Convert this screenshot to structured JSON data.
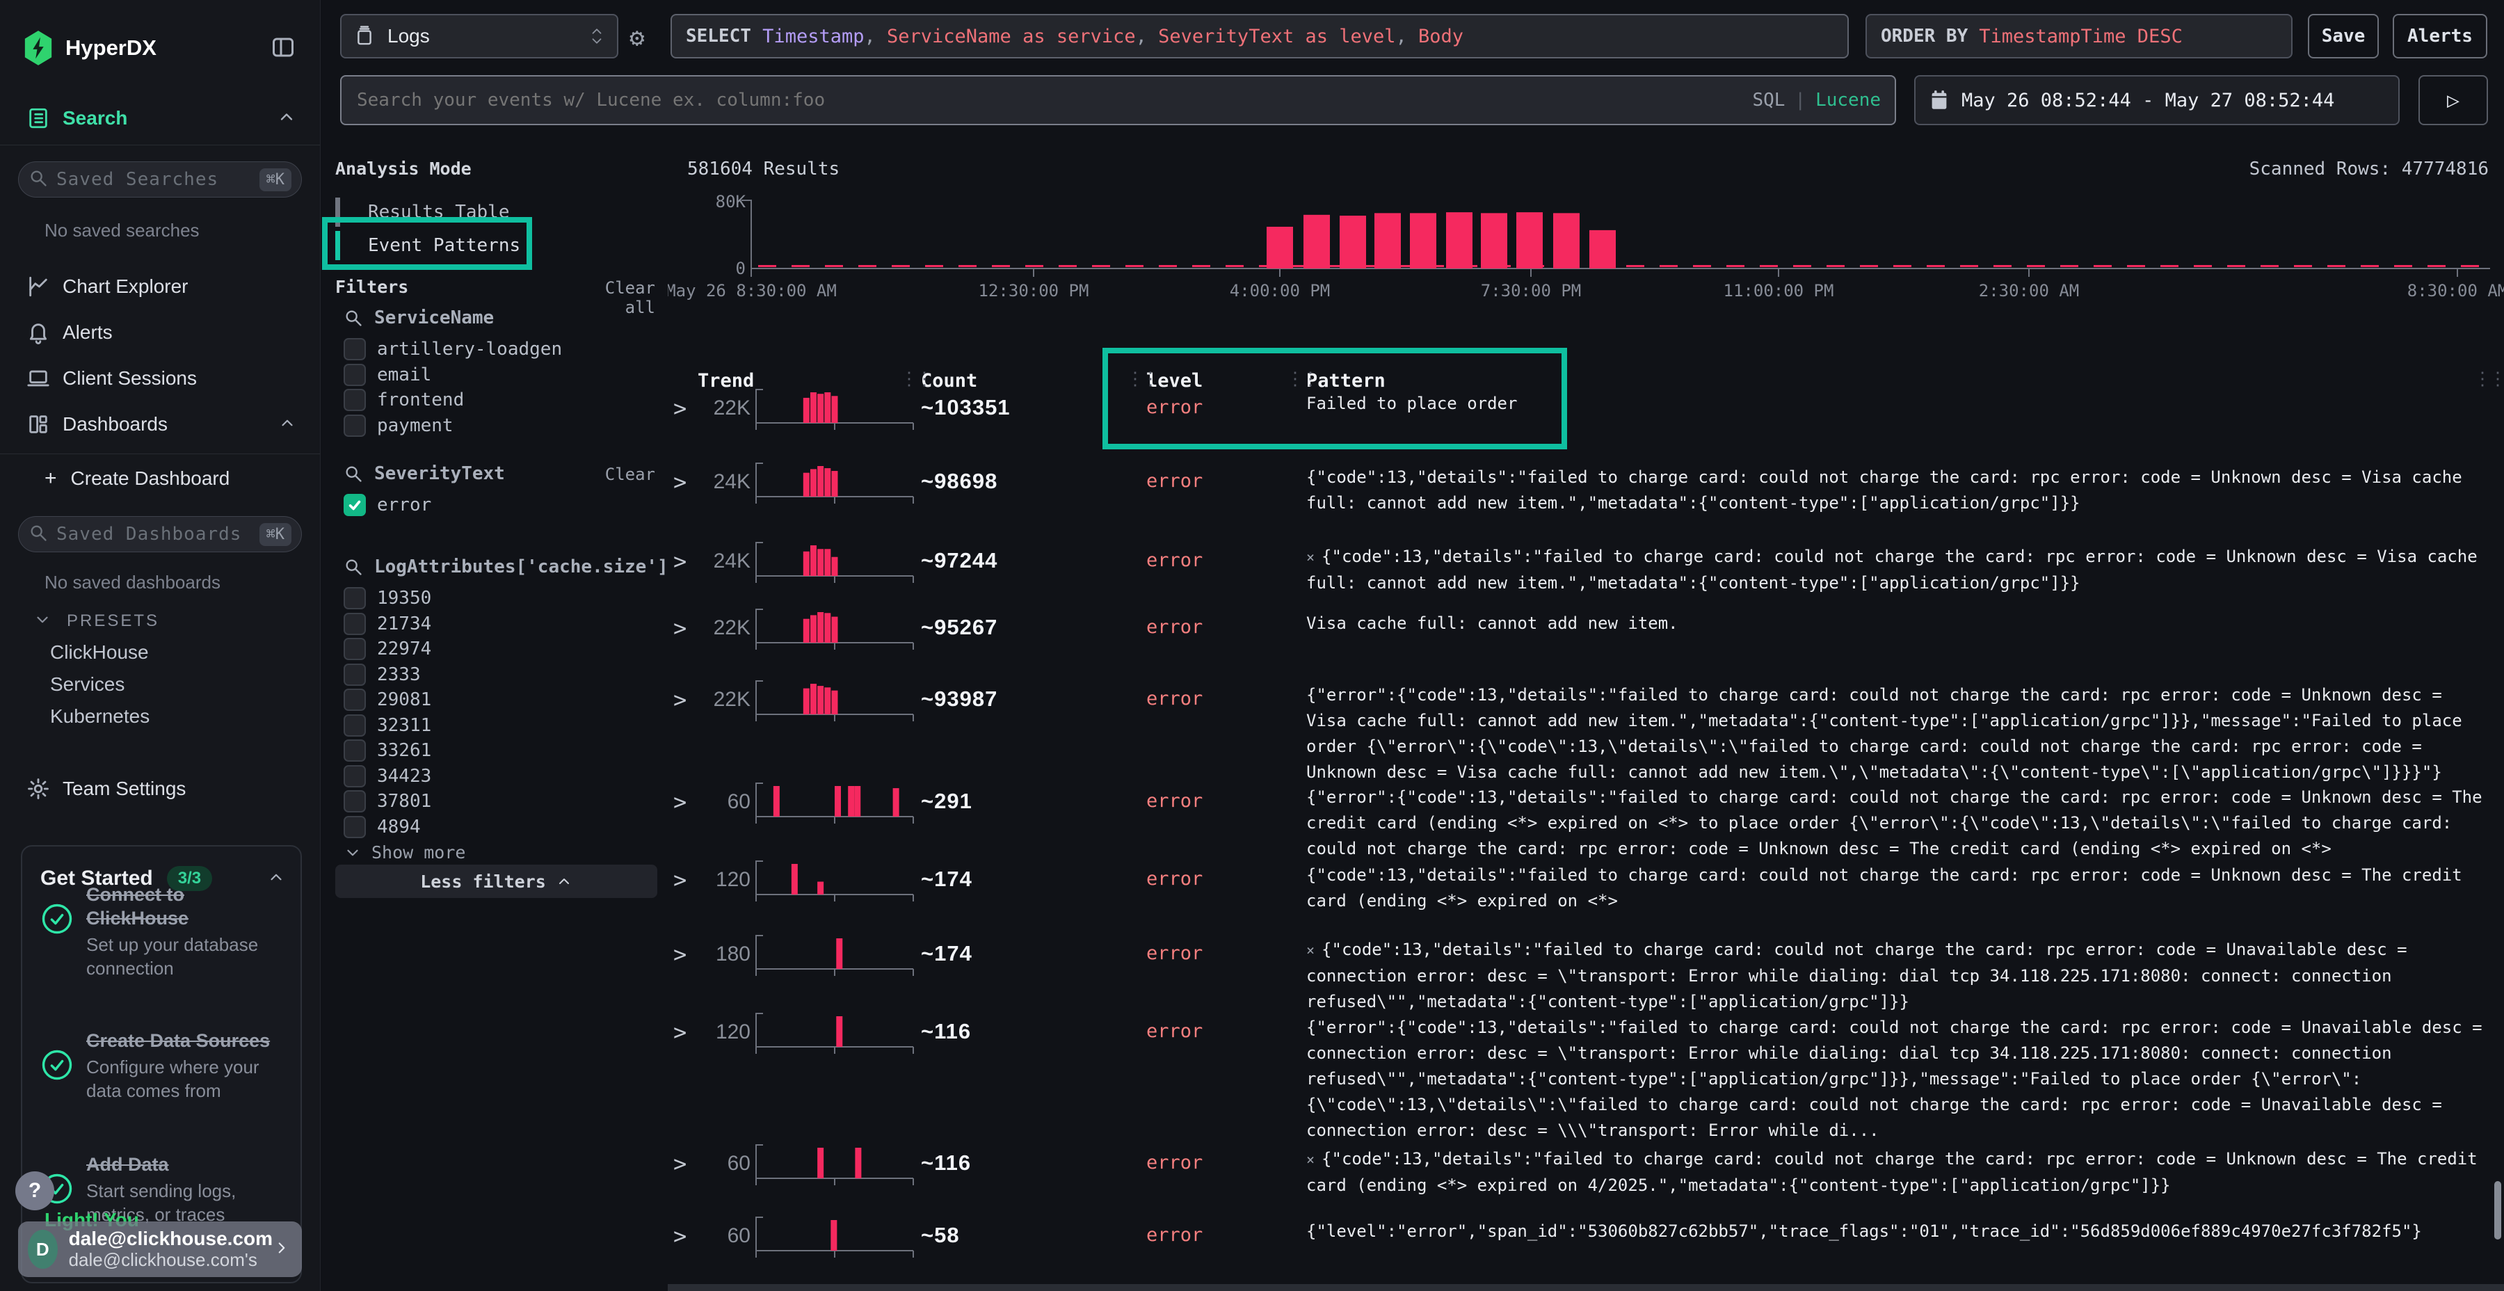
{
  "brand": {
    "name": "HyperDX",
    "logo_color": "#2fd36e"
  },
  "sidebar": {
    "search_label": "Search",
    "saved_searches_placeholder": "Saved Searches",
    "shortcut": "⌘K",
    "empty_searches": "No saved searches",
    "nav": [
      {
        "label": "Chart Explorer",
        "icon": "chart-icon"
      },
      {
        "label": "Alerts",
        "icon": "bell-icon"
      },
      {
        "label": "Client Sessions",
        "icon": "laptop-icon"
      },
      {
        "label": "Dashboards",
        "icon": "grid-icon",
        "chevron": "up"
      }
    ],
    "create_dashboard": "Create Dashboard",
    "saved_dashboards_placeholder": "Saved Dashboards",
    "empty_dashboards": "No saved dashboards",
    "presets_label": "PRESETS",
    "presets": [
      "ClickHouse",
      "Services",
      "Kubernetes"
    ],
    "team_settings": "Team Settings",
    "get_started": {
      "title": "Get Started",
      "badge": "3/3",
      "steps": [
        {
          "title": "Connect to ClickHouse",
          "desc": "Set up your database connection"
        },
        {
          "title": "Create Data Sources",
          "desc": "Configure where your data comes from"
        },
        {
          "title": "Add Data",
          "desc": "Start sending logs, metrics, or traces"
        }
      ]
    },
    "help_label": "?",
    "promo_partial": "Light! You",
    "user": {
      "initial": "D",
      "email": "dale@clickhouse.com",
      "org": "dale@clickhouse.com's"
    }
  },
  "topbar": {
    "source_select": {
      "label": "Logs"
    },
    "select_query": {
      "keyword": "SELECT",
      "segments": [
        {
          "t": " Timestamp",
          "c": "purple"
        },
        {
          "t": ",",
          "c": "muted"
        },
        {
          "t": " ServiceName as service",
          "c": "red"
        },
        {
          "t": ",",
          "c": "muted"
        },
        {
          "t": " SeverityText as level",
          "c": "red"
        },
        {
          "t": ",",
          "c": "muted"
        },
        {
          "t": " Body",
          "c": "red"
        }
      ]
    },
    "order_by": {
      "keyword": "ORDER BY",
      "value": "TimestampTime DESC"
    },
    "save_label": "Save",
    "alerts_label": "Alerts",
    "search": {
      "placeholder": "Search your events w/ Lucene ex. column:foo",
      "mode_sql": "SQL",
      "mode_lucene": "Lucene",
      "active_mode": "Lucene"
    },
    "date_range": "May 26 08:52:44 - May 27 08:52:44"
  },
  "filters_panel": {
    "analysis_mode_label": "Analysis Mode",
    "modes": [
      {
        "label": "Results Table",
        "active": false
      },
      {
        "label": "Event Patterns",
        "active": true
      }
    ],
    "filters_label": "Filters",
    "clear_all": "Clear all",
    "groups": [
      {
        "name": "ServiceName",
        "action": "",
        "items": [
          {
            "label": "artillery-loadgen",
            "checked": false
          },
          {
            "label": "email",
            "checked": false
          },
          {
            "label": "frontend",
            "checked": false
          },
          {
            "label": "payment",
            "checked": false
          }
        ]
      },
      {
        "name": "SeverityText",
        "action": "Clear",
        "items": [
          {
            "label": "error",
            "checked": true
          }
        ]
      },
      {
        "name": "LogAttributes['cache.size']",
        "action": "",
        "items": [
          {
            "label": "19350",
            "checked": false
          },
          {
            "label": "21734",
            "checked": false
          },
          {
            "label": "22974",
            "checked": false
          },
          {
            "label": "2333",
            "checked": false
          },
          {
            "label": "29081",
            "checked": false
          },
          {
            "label": "32311",
            "checked": false
          },
          {
            "label": "33261",
            "checked": false
          },
          {
            "label": "34423",
            "checked": false
          },
          {
            "label": "37801",
            "checked": false
          },
          {
            "label": "4894",
            "checked": false
          }
        ],
        "show_more": "Show more"
      }
    ],
    "less_filters": "Less filters"
  },
  "results": {
    "count_label": "581604 Results",
    "scanned_label": "Scanned Rows: 47774816",
    "chart_data": {
      "type": "bar",
      "title": "",
      "xlabel": "",
      "ylabel": "",
      "ylim": [
        0,
        80000
      ],
      "ytick_labels": [
        "80K",
        "0"
      ],
      "bar_color": "#f5295f",
      "x_ticks": [
        {
          "label": "May 26 8:30:00 AM",
          "t": 0.0
        },
        {
          "label": "12:30:00 PM",
          "t": 0.1624
        },
        {
          "label": "4:00:00 PM",
          "t": 0.304
        },
        {
          "label": "7:30:00 PM",
          "t": 0.4484
        },
        {
          "label": "11:00:00 PM",
          "t": 0.5908
        },
        {
          "label": "2:30:00 AM",
          "t": 0.7348
        },
        {
          "label": "8:30:00 AM",
          "t": 0.9812
        }
      ],
      "bars": [
        {
          "t": 0.2964,
          "value": 49000
        },
        {
          "t": 0.3176,
          "value": 63000
        },
        {
          "t": 0.3384,
          "value": 62000
        },
        {
          "t": 0.3584,
          "value": 65000
        },
        {
          "t": 0.3788,
          "value": 65000
        },
        {
          "t": 0.3996,
          "value": 66000
        },
        {
          "t": 0.4196,
          "value": 65000
        },
        {
          "t": 0.44,
          "value": 66000
        },
        {
          "t": 0.4612,
          "value": 65000
        },
        {
          "t": 0.482,
          "value": 45000
        }
      ],
      "baseline_activity": "near-zero dashed series across full range"
    },
    "table": {
      "columns": [
        "Trend",
        "Count",
        "level",
        "Pattern"
      ],
      "rows": [
        {
          "ymax": "22K",
          "count": "~103351",
          "level": "error",
          "prefix": "",
          "pattern": "Failed to place order",
          "spark": [
            [
              0.3,
              0.82
            ],
            [
              0.345,
              1
            ],
            [
              0.39,
              0.95
            ],
            [
              0.435,
              1
            ],
            [
              0.48,
              0.88
            ]
          ]
        },
        {
          "ymax": "24K",
          "count": "~98698",
          "level": "error",
          "prefix": "",
          "pattern": "{\"code\":13,\"details\":\"failed to charge card: could not charge the card: rpc error: code = Unknown desc = Visa cache full: cannot add new item.\",\"metadata\":{\"content-type\":[\"application/grpc\"]}}",
          "spark": [
            [
              0.3,
              0.78
            ],
            [
              0.345,
              0.9
            ],
            [
              0.39,
              1
            ],
            [
              0.435,
              0.93
            ],
            [
              0.48,
              0.84
            ]
          ]
        },
        {
          "ymax": "24K",
          "count": "~97244",
          "level": "error",
          "prefix": "×",
          "pattern": "{\"code\":13,\"details\":\"failed to charge card: could not charge the card: rpc error: code = Unknown desc = Visa cache full: cannot add new item.\",\"metadata\":{\"content-type\":[\"application/grpc\"]}}",
          "spark": [
            [
              0.3,
              0.8
            ],
            [
              0.345,
              1
            ],
            [
              0.39,
              0.88
            ],
            [
              0.435,
              0.88
            ],
            [
              0.48,
              0.62
            ]
          ]
        },
        {
          "ymax": "22K",
          "count": "~95267",
          "level": "error",
          "prefix": "",
          "pattern": "Visa cache full: cannot add new item.",
          "spark": [
            [
              0.3,
              0.78
            ],
            [
              0.345,
              0.9
            ],
            [
              0.39,
              1
            ],
            [
              0.435,
              0.97
            ],
            [
              0.48,
              0.85
            ]
          ]
        },
        {
          "ymax": "22K",
          "count": "~93987",
          "level": "error",
          "prefix": "",
          "pattern": "{\"error\":{\"code\":13,\"details\":\"failed to charge card: could not charge the card: rpc error: code = Unknown desc = Visa cache full: cannot add new item.\",\"metadata\":{\"content-type\":[\"application/grpc\"]}},\"message\":\"Failed to place order {\\\"error\\\":{\\\"code\\\":13,\\\"details\\\":\\\"failed to charge card: could not charge the card: rpc error: code = Unknown desc = Visa cache full: cannot add new item.\\\",\\\"metadata\\\":{\\\"content-type\\\":[\\\"application/grpc\\\"]}}}\"}",
          "spark": [
            [
              0.3,
              0.85
            ],
            [
              0.345,
              1
            ],
            [
              0.39,
              0.93
            ],
            [
              0.435,
              0.88
            ],
            [
              0.48,
              0.78
            ]
          ]
        },
        {
          "ymax": "60",
          "count": "~291",
          "level": "error",
          "prefix": "",
          "pattern": "{\"error\":{\"code\":13,\"details\":\"failed to charge card: could not charge the card: rpc error: code = Unknown desc = The credit card (ending <*> expired on <*> to place order {\\\"error\\\":{\\\"code\\\":13,\\\"details\\\":\\\"failed to charge card: could not charge the card: rpc error: code = Unknown desc = The credit card (ending <*> expired on <*>",
          "spark": [
            [
              0.11,
              1
            ],
            [
              0.5,
              1
            ],
            [
              0.585,
              1
            ],
            [
              0.625,
              1
            ],
            [
              0.87,
              0.93
            ]
          ]
        },
        {
          "ymax": "120",
          "count": "~174",
          "level": "error",
          "prefix": "",
          "pattern": "{\"code\":13,\"details\":\"failed to charge card: could not charge the card: rpc error: code = Unknown desc = The credit card (ending <*> expired on <*>",
          "spark": [
            [
              0.225,
              1
            ],
            [
              0.39,
              0.42
            ]
          ]
        },
        {
          "ymax": "180",
          "count": "~174",
          "level": "error",
          "prefix": "×",
          "pattern": "{\"code\":13,\"details\":\"failed to charge card: could not charge the card: rpc error: code = Unavailable desc = connection error: desc = \\\"transport: Error while dialing: dial tcp 34.118.225.171:8080: connect: connection refused\\\"\",\"metadata\":{\"content-type\":[\"application/grpc\"]}}",
          "spark": [
            [
              0.51,
              1
            ]
          ]
        },
        {
          "ymax": "120",
          "count": "~116",
          "level": "error",
          "prefix": "",
          "pattern": "{\"error\":{\"code\":13,\"details\":\"failed to charge card: could not charge the card: rpc error: code = Unavailable desc = connection error: desc = \\\"transport: Error while dialing: dial tcp 34.118.225.171:8080: connect: connection refused\\\"\",\"metadata\":{\"content-type\":[\"application/grpc\"]}},\"message\":\"Failed to place order {\\\"error\\\":{\\\"code\\\":13,\\\"details\\\":\\\"failed to charge card: could not charge the card: rpc error: code = Unavailable desc = connection error: desc = \\\\\\\"transport: Error while di...",
          "spark": [
            [
              0.51,
              1
            ]
          ]
        },
        {
          "ymax": "60",
          "count": "~116",
          "level": "error",
          "prefix": "×",
          "pattern": "{\"code\":13,\"details\":\"failed to charge card: could not charge the card: rpc error: code = Unknown desc = The credit card (ending <*> expired on 4/2025.\",\"metadata\":{\"content-type\":[\"application/grpc\"]}}",
          "spark": [
            [
              0.39,
              1
            ],
            [
              0.63,
              1
            ]
          ]
        },
        {
          "ymax": "60",
          "count": "~58",
          "level": "error",
          "prefix": "",
          "pattern": "{\"level\":\"error\",\"span_id\":\"53060b827c62bb57\",\"trace_flags\":\"01\",\"trace_id\":\"56d859d006ef889c4970e27fc3f782f5\"}",
          "spark": [
            [
              0.475,
              1
            ]
          ]
        }
      ]
    }
  },
  "colors": {
    "accent_teal": "#0fbfa0",
    "brand_green": "#2fd36e",
    "bar_pink": "#f5295f",
    "error_text": "#f57f7f",
    "checked_teal": "#12b886"
  }
}
